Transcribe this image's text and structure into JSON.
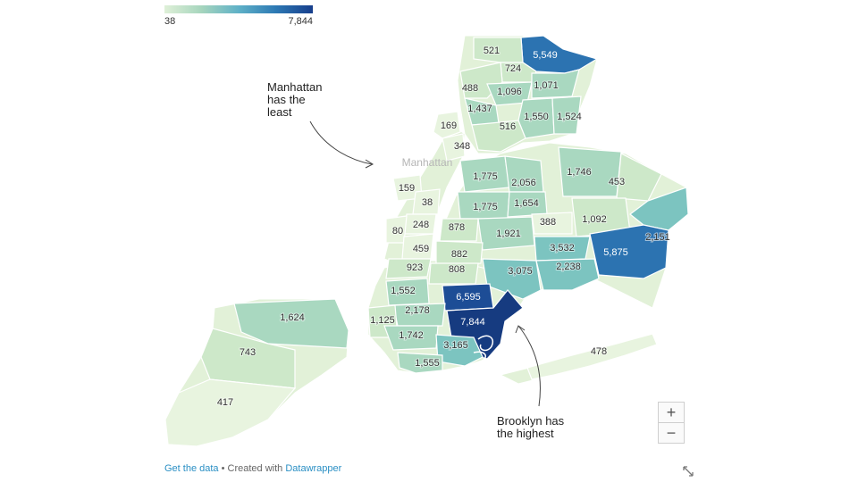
{
  "legend": {
    "min_label": "38",
    "max_label": "7,844"
  },
  "place_label": "Manhattan",
  "annotations": {
    "manhattan": "Manhattan\nhas the\nleast",
    "brooklyn": "Brooklyn has\nthe highest"
  },
  "zoom": {
    "in_label": "+",
    "out_label": "−"
  },
  "footer": {
    "get_data": "Get the data",
    "separator": " • Created with ",
    "brand": "Datawrapper"
  },
  "colors": {
    "c1": "#e8f4df",
    "c2": "#cde8c9",
    "c3": "#a9d8c0",
    "c4": "#7cc4c0",
    "c5": "#4f9fca",
    "c6": "#2c73b1",
    "c7": "#1d4d96",
    "c8": "#163b80"
  },
  "districts": [
    {
      "value": "521",
      "color": "c2"
    },
    {
      "value": "724",
      "color": "c2"
    },
    {
      "value": "5,549",
      "color": "c6"
    },
    {
      "value": "488",
      "color": "c2"
    },
    {
      "value": "1,096",
      "color": "c3"
    },
    {
      "value": "1,071",
      "color": "c3"
    },
    {
      "value": "1,437",
      "color": "c3"
    },
    {
      "value": "1,550",
      "color": "c3"
    },
    {
      "value": "1,524",
      "color": "c3"
    },
    {
      "value": "516",
      "color": "c2"
    },
    {
      "value": "169",
      "color": "c1"
    },
    {
      "value": "348",
      "color": "c1"
    },
    {
      "value": "1,775",
      "color": "c3"
    },
    {
      "value": "2,056",
      "color": "c3"
    },
    {
      "value": "1,746",
      "color": "c3"
    },
    {
      "value": "453",
      "color": "c2"
    },
    {
      "value": "159",
      "color": "c1"
    },
    {
      "value": "38",
      "color": "c1"
    },
    {
      "value": "1,775",
      "color": "c3"
    },
    {
      "value": "1,654",
      "color": "c3"
    },
    {
      "value": "388",
      "color": "c1"
    },
    {
      "value": "1,092",
      "color": "c2"
    },
    {
      "value": "248",
      "color": "c1"
    },
    {
      "value": "878",
      "color": "c2"
    },
    {
      "value": "80",
      "color": "c1"
    },
    {
      "value": "1,921",
      "color": "c3"
    },
    {
      "value": "3,532",
      "color": "c4"
    },
    {
      "value": "2,151",
      "color": "c4"
    },
    {
      "value": "459",
      "color": "c1"
    },
    {
      "value": "882",
      "color": "c2"
    },
    {
      "value": "5,875",
      "color": "c6"
    },
    {
      "value": "923",
      "color": "c2"
    },
    {
      "value": "808",
      "color": "c2"
    },
    {
      "value": "3,075",
      "color": "c4"
    },
    {
      "value": "2,238",
      "color": "c4"
    },
    {
      "value": "1,552",
      "color": "c3"
    },
    {
      "value": "6,595",
      "color": "c7"
    },
    {
      "value": "2,178",
      "color": "c3"
    },
    {
      "value": "1,125",
      "color": "c2"
    },
    {
      "value": "7,844",
      "color": "c8"
    },
    {
      "value": "1,742",
      "color": "c3"
    },
    {
      "value": "3,165",
      "color": "c4"
    },
    {
      "value": "1,555",
      "color": "c3"
    },
    {
      "value": "1,624",
      "color": "c3"
    },
    {
      "value": "743",
      "color": "c2"
    },
    {
      "value": "417",
      "color": "c1"
    },
    {
      "value": "478",
      "color": "c1"
    }
  ]
}
